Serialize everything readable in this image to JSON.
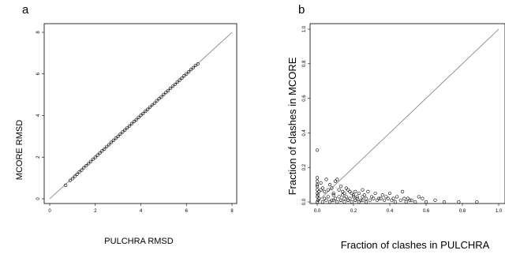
{
  "chart_data": [
    {
      "panel_label": "a",
      "type": "scatter",
      "title": "",
      "xlabel": "PULCHRA RMSD",
      "ylabel": "MCORE RMSD",
      "xlim": [
        0,
        8
      ],
      "ylim": [
        0,
        8
      ],
      "xticks": [
        "0",
        "2",
        "4",
        "6",
        "8"
      ],
      "yticks": [
        "0",
        "2",
        "4",
        "6",
        "8"
      ],
      "grid": false,
      "reference_line": "y = x",
      "series": [
        {
          "marker": "open-circle",
          "x": [
            0.7,
            0.9,
            1.0,
            1.1,
            1.2,
            1.3,
            1.4,
            1.5,
            1.6,
            1.7,
            1.8,
            1.9,
            2.0,
            2.1,
            2.2,
            2.3,
            2.4,
            2.5,
            2.6,
            2.7,
            2.8,
            2.9,
            3.0,
            3.1,
            3.2,
            3.3,
            3.4,
            3.5,
            3.6,
            3.7,
            3.8,
            3.9,
            4.0,
            4.1,
            4.2,
            4.3,
            4.4,
            4.5,
            4.6,
            4.7,
            4.8,
            4.9,
            5.0,
            5.1,
            5.2,
            5.3,
            5.4,
            5.5,
            5.6,
            5.7,
            5.8,
            5.9,
            6.0,
            6.1,
            6.2,
            6.3,
            6.4,
            6.5
          ],
          "y": [
            0.65,
            0.88,
            0.97,
            1.08,
            1.18,
            1.29,
            1.38,
            1.49,
            1.59,
            1.69,
            1.79,
            1.9,
            1.99,
            2.1,
            2.2,
            2.3,
            2.39,
            2.51,
            2.6,
            2.71,
            2.81,
            2.91,
            3.0,
            3.11,
            3.21,
            3.3,
            3.41,
            3.5,
            3.61,
            3.71,
            3.8,
            3.91,
            4.01,
            4.1,
            4.21,
            4.3,
            4.41,
            4.51,
            4.6,
            4.71,
            4.81,
            4.9,
            5.01,
            5.11,
            5.2,
            5.31,
            5.41,
            5.5,
            5.61,
            5.7,
            5.8,
            5.91,
            6.0,
            6.1,
            6.21,
            6.3,
            6.41,
            6.48
          ]
        }
      ]
    },
    {
      "panel_label": "b",
      "type": "scatter",
      "title": "",
      "xlabel": "Fraction of clashes in PULCHRA",
      "ylabel": "Fraction of clashes in MCORE",
      "xlim": [
        0,
        1.0
      ],
      "ylim": [
        0,
        1.0
      ],
      "xticks": [
        "0.0",
        "0.2",
        "0.4",
        "0.6",
        "0.8",
        "1.0"
      ],
      "yticks": [
        "0.0",
        "0.2",
        "0.4",
        "0.6",
        "0.8",
        "1.0"
      ],
      "grid": false,
      "reference_line": "y = x",
      "series": [
        {
          "marker": "open-circle",
          "x": [
            0.0,
            0.005,
            0.01,
            0.0,
            0.0,
            0.01,
            0.0,
            0.02,
            0.03,
            0.02,
            0.04,
            0.05,
            0.06,
            0.07,
            0.08,
            0.09,
            0.1,
            0.11,
            0.12,
            0.13,
            0.14,
            0.15,
            0.16,
            0.17,
            0.18,
            0.19,
            0.2,
            0.21,
            0.22,
            0.23,
            0.25,
            0.26,
            0.28,
            0.3,
            0.32,
            0.34,
            0.36,
            0.38,
            0.4,
            0.42,
            0.44,
            0.47,
            0.5,
            0.52,
            0.56,
            0.58,
            0.6,
            0.65,
            0.7,
            0.78,
            0.88,
            0.0,
            0.0,
            0.005,
            0.04,
            0.06,
            0.08,
            0.09,
            0.1,
            0.12,
            0.13,
            0.14,
            0.15,
            0.16,
            0.17,
            0.18,
            0.2,
            0.21,
            0.22,
            0.24,
            0.25,
            0.27,
            0.29,
            0.31,
            0.33,
            0.35,
            0.37,
            0.39,
            0.41,
            0.43,
            0.46,
            0.48,
            0.49,
            0.51,
            0.54,
            0.03,
            0.07,
            0.11,
            0.15,
            0.19,
            0.23,
            0.27,
            0.05,
            0.09,
            0.13,
            0.17,
            0.21,
            0.25,
            0.0,
            0.0,
            0.0
          ],
          "y": [
            0.0,
            0.01,
            0.02,
            0.03,
            0.05,
            0.06,
            0.3,
            0.07,
            0.08,
            0.11,
            0.06,
            0.13,
            0.07,
            0.1,
            0.08,
            0.05,
            0.12,
            0.13,
            0.07,
            0.09,
            0.06,
            0.05,
            0.08,
            0.07,
            0.06,
            0.05,
            0.04,
            0.06,
            0.03,
            0.05,
            0.07,
            0.04,
            0.06,
            0.03,
            0.05,
            0.02,
            0.04,
            0.03,
            0.05,
            0.02,
            0.03,
            0.06,
            0.02,
            0.01,
            0.03,
            0.02,
            0.0,
            0.01,
            0.0,
            0.0,
            0.0,
            0.09,
            0.12,
            0.04,
            0.02,
            0.03,
            0.01,
            0.04,
            0.02,
            0.03,
            0.01,
            0.04,
            0.02,
            0.03,
            0.01,
            0.02,
            0.03,
            0.01,
            0.02,
            0.01,
            0.03,
            0.02,
            0.01,
            0.02,
            0.01,
            0.02,
            0.01,
            0.02,
            0.01,
            0.0,
            0.01,
            0.02,
            0.0,
            0.01,
            0.0,
            0.0,
            0.0,
            0.0,
            0.0,
            0.0,
            0.0,
            0.0,
            0.01,
            0.01,
            0.01,
            0.01,
            0.01,
            0.01,
            0.07,
            0.1,
            0.14
          ]
        }
      ]
    }
  ]
}
